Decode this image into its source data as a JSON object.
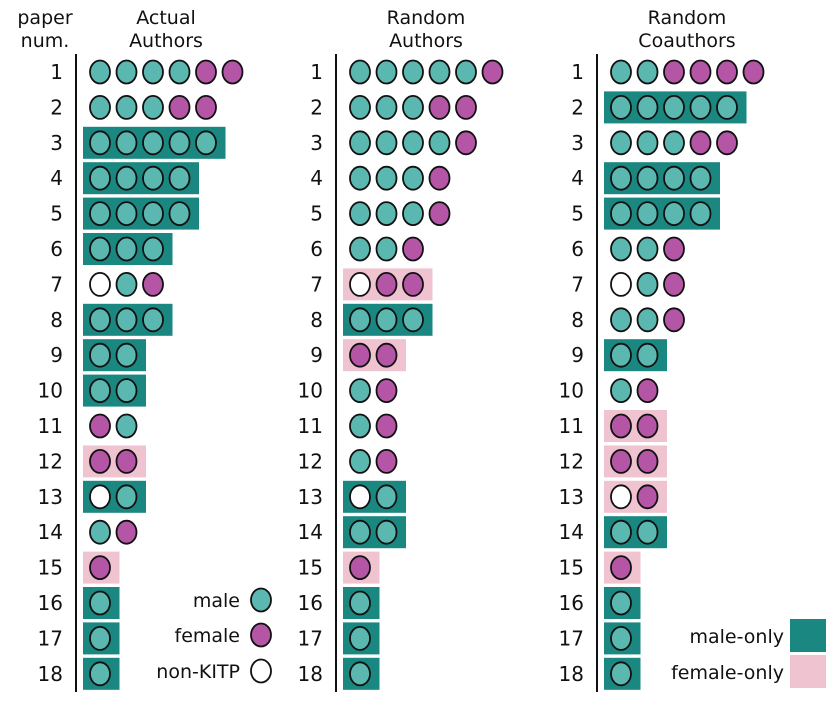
{
  "chart_data": {
    "type": "table",
    "row_header": [
      "paper",
      "num."
    ],
    "colors": {
      "male": "#5bb8b1",
      "female": "#b555a6",
      "non_kitp": "#ffffff",
      "male_only_box": "#1a8780",
      "female_only_box": "#efc4d0",
      "outline": "#111111"
    },
    "panels": [
      {
        "title_lines": [
          "Actual",
          "Authors"
        ],
        "rows": [
          {
            "num": "1",
            "authors": [
              "m",
              "m",
              "m",
              "m",
              "f",
              "f"
            ],
            "group": "none"
          },
          {
            "num": "2",
            "authors": [
              "m",
              "m",
              "m",
              "f",
              "f"
            ],
            "group": "none"
          },
          {
            "num": "3",
            "authors": [
              "m",
              "m",
              "m",
              "m",
              "m"
            ],
            "group": "male-only"
          },
          {
            "num": "4",
            "authors": [
              "m",
              "m",
              "m",
              "m"
            ],
            "group": "male-only"
          },
          {
            "num": "5",
            "authors": [
              "m",
              "m",
              "m",
              "m"
            ],
            "group": "male-only"
          },
          {
            "num": "6",
            "authors": [
              "m",
              "m",
              "m"
            ],
            "group": "male-only"
          },
          {
            "num": "7",
            "authors": [
              "n",
              "m",
              "f"
            ],
            "group": "none"
          },
          {
            "num": "8",
            "authors": [
              "m",
              "m",
              "m"
            ],
            "group": "male-only"
          },
          {
            "num": "9",
            "authors": [
              "m",
              "m"
            ],
            "group": "male-only"
          },
          {
            "num": "10",
            "authors": [
              "m",
              "m"
            ],
            "group": "male-only"
          },
          {
            "num": "11",
            "authors": [
              "f",
              "m"
            ],
            "group": "none"
          },
          {
            "num": "12",
            "authors": [
              "f",
              "f"
            ],
            "group": "female-only"
          },
          {
            "num": "13",
            "authors": [
              "n",
              "m"
            ],
            "group": "male-only"
          },
          {
            "num": "14",
            "authors": [
              "m",
              "f"
            ],
            "group": "none"
          },
          {
            "num": "15",
            "authors": [
              "f"
            ],
            "group": "female-only"
          },
          {
            "num": "16",
            "authors": [
              "m"
            ],
            "group": "male-only"
          },
          {
            "num": "17",
            "authors": [
              "m"
            ],
            "group": "male-only"
          },
          {
            "num": "18",
            "authors": [
              "m"
            ],
            "group": "male-only"
          }
        ]
      },
      {
        "title_lines": [
          "Random",
          "Authors"
        ],
        "rows": [
          {
            "num": "1",
            "authors": [
              "m",
              "m",
              "m",
              "m",
              "m",
              "f"
            ],
            "group": "none"
          },
          {
            "num": "2",
            "authors": [
              "m",
              "m",
              "m",
              "f",
              "f"
            ],
            "group": "none"
          },
          {
            "num": "3",
            "authors": [
              "m",
              "m",
              "m",
              "m",
              "f"
            ],
            "group": "none"
          },
          {
            "num": "4",
            "authors": [
              "m",
              "m",
              "m",
              "f"
            ],
            "group": "none"
          },
          {
            "num": "5",
            "authors": [
              "m",
              "m",
              "m",
              "f"
            ],
            "group": "none"
          },
          {
            "num": "6",
            "authors": [
              "m",
              "m",
              "f"
            ],
            "group": "none"
          },
          {
            "num": "7",
            "authors": [
              "n",
              "f",
              "f"
            ],
            "group": "female-only"
          },
          {
            "num": "8",
            "authors": [
              "m",
              "m",
              "m"
            ],
            "group": "male-only"
          },
          {
            "num": "9",
            "authors": [
              "f",
              "f"
            ],
            "group": "female-only"
          },
          {
            "num": "10",
            "authors": [
              "m",
              "f"
            ],
            "group": "none"
          },
          {
            "num": "11",
            "authors": [
              "m",
              "f"
            ],
            "group": "none"
          },
          {
            "num": "12",
            "authors": [
              "m",
              "f"
            ],
            "group": "none"
          },
          {
            "num": "13",
            "authors": [
              "n",
              "m"
            ],
            "group": "male-only"
          },
          {
            "num": "14",
            "authors": [
              "m",
              "m"
            ],
            "group": "male-only"
          },
          {
            "num": "15",
            "authors": [
              "f"
            ],
            "group": "female-only"
          },
          {
            "num": "16",
            "authors": [
              "m"
            ],
            "group": "male-only"
          },
          {
            "num": "17",
            "authors": [
              "m"
            ],
            "group": "male-only"
          },
          {
            "num": "18",
            "authors": [
              "m"
            ],
            "group": "male-only"
          }
        ]
      },
      {
        "title_lines": [
          "Random",
          "Coauthors"
        ],
        "rows": [
          {
            "num": "1",
            "authors": [
              "m",
              "m",
              "f",
              "f",
              "f",
              "f"
            ],
            "group": "none"
          },
          {
            "num": "2",
            "authors": [
              "m",
              "m",
              "m",
              "m",
              "m"
            ],
            "group": "male-only"
          },
          {
            "num": "3",
            "authors": [
              "m",
              "m",
              "m",
              "f",
              "f"
            ],
            "group": "none"
          },
          {
            "num": "4",
            "authors": [
              "m",
              "m",
              "m",
              "m"
            ],
            "group": "male-only"
          },
          {
            "num": "5",
            "authors": [
              "m",
              "m",
              "m",
              "m"
            ],
            "group": "male-only"
          },
          {
            "num": "6",
            "authors": [
              "m",
              "m",
              "f"
            ],
            "group": "none"
          },
          {
            "num": "7",
            "authors": [
              "n",
              "m",
              "f"
            ],
            "group": "none"
          },
          {
            "num": "8",
            "authors": [
              "m",
              "m",
              "f"
            ],
            "group": "none"
          },
          {
            "num": "9",
            "authors": [
              "m",
              "m"
            ],
            "group": "male-only"
          },
          {
            "num": "10",
            "authors": [
              "m",
              "f"
            ],
            "group": "none"
          },
          {
            "num": "11",
            "authors": [
              "f",
              "f"
            ],
            "group": "female-only"
          },
          {
            "num": "12",
            "authors": [
              "f",
              "f"
            ],
            "group": "female-only"
          },
          {
            "num": "13",
            "authors": [
              "n",
              "f"
            ],
            "group": "female-only"
          },
          {
            "num": "14",
            "authors": [
              "m",
              "m"
            ],
            "group": "male-only"
          },
          {
            "num": "15",
            "authors": [
              "f"
            ],
            "group": "female-only"
          },
          {
            "num": "16",
            "authors": [
              "m"
            ],
            "group": "male-only"
          },
          {
            "num": "17",
            "authors": [
              "m"
            ],
            "group": "male-only"
          },
          {
            "num": "18",
            "authors": [
              "m"
            ],
            "group": "male-only"
          }
        ]
      }
    ],
    "legend_circles": [
      {
        "label": "male",
        "kind": "m"
      },
      {
        "label": "female",
        "kind": "f"
      },
      {
        "label": "non-KITP",
        "kind": "n"
      }
    ],
    "legend_boxes": [
      {
        "label": "male-only",
        "kind": "male-only"
      },
      {
        "label": "female-only",
        "kind": "female-only"
      }
    ]
  }
}
